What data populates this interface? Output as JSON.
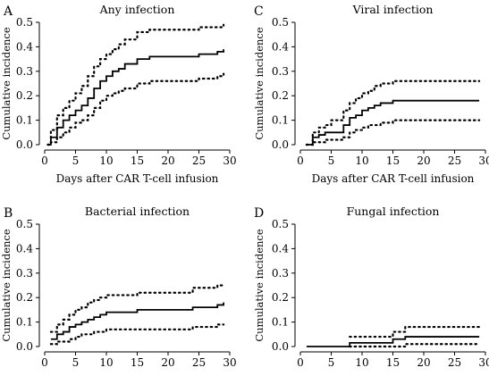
{
  "figure": {
    "y_label": "Cumulative incidence",
    "x_label": "Days after CAR T-cell infusion"
  },
  "chart_data": [
    {
      "type": "line",
      "panel_letter": "A",
      "title": "Any infection",
      "xlabel": "Days after CAR T-cell infusion",
      "ylabel": "Cumulative incidence",
      "xlim": [
        0,
        30
      ],
      "ylim": [
        0,
        0.5
      ],
      "x_ticks": [
        0,
        5,
        10,
        15,
        20,
        25,
        30
      ],
      "y_ticks": [
        0.0,
        0.1,
        0.2,
        0.3,
        0.4,
        0.5
      ],
      "grid": false,
      "series": [
        {
          "role": "estimate",
          "style": "solid",
          "x": [
            0.5,
            1,
            2,
            3,
            4,
            5,
            6,
            7,
            8,
            9,
            10,
            11,
            12,
            13,
            15,
            17,
            19,
            22,
            25,
            28,
            29
          ],
          "y": [
            0.0,
            0.03,
            0.07,
            0.1,
            0.12,
            0.14,
            0.16,
            0.19,
            0.23,
            0.26,
            0.28,
            0.3,
            0.31,
            0.33,
            0.35,
            0.36,
            0.36,
            0.36,
            0.37,
            0.38,
            0.39
          ]
        },
        {
          "role": "upper",
          "style": "dotted",
          "x": [
            0.5,
            1,
            2,
            3,
            4,
            5,
            6,
            7,
            8,
            9,
            10,
            11,
            12,
            13,
            15,
            17,
            19,
            22,
            25,
            28,
            29
          ],
          "y": [
            0.0,
            0.06,
            0.12,
            0.15,
            0.18,
            0.21,
            0.24,
            0.28,
            0.32,
            0.35,
            0.37,
            0.39,
            0.41,
            0.43,
            0.46,
            0.47,
            0.47,
            0.47,
            0.48,
            0.48,
            0.49
          ]
        },
        {
          "role": "lower",
          "style": "dotted",
          "x": [
            0.5,
            1,
            2,
            3,
            4,
            5,
            6,
            7,
            8,
            9,
            10,
            11,
            12,
            13,
            15,
            17,
            19,
            22,
            25,
            28,
            29
          ],
          "y": [
            0.0,
            0.01,
            0.03,
            0.05,
            0.07,
            0.09,
            0.1,
            0.12,
            0.15,
            0.18,
            0.2,
            0.21,
            0.22,
            0.23,
            0.25,
            0.26,
            0.26,
            0.26,
            0.27,
            0.28,
            0.29
          ]
        }
      ]
    },
    {
      "type": "line",
      "panel_letter": "C",
      "title": "Viral infection",
      "xlabel": "Days after CAR T-cell infusion",
      "ylabel": "Cumulative incidence",
      "xlim": [
        0,
        30
      ],
      "ylim": [
        0,
        0.5
      ],
      "x_ticks": [
        0,
        5,
        10,
        15,
        20,
        25,
        30
      ],
      "y_ticks": [
        0.0,
        0.1,
        0.2,
        0.3,
        0.4,
        0.5
      ],
      "grid": false,
      "series": [
        {
          "role": "estimate",
          "style": "solid",
          "x": [
            1,
            2,
            3,
            4,
            5,
            7,
            8,
            9,
            10,
            11,
            12,
            13,
            14,
            15,
            29
          ],
          "y": [
            0.0,
            0.03,
            0.04,
            0.05,
            0.05,
            0.08,
            0.11,
            0.12,
            0.14,
            0.15,
            0.16,
            0.17,
            0.17,
            0.18,
            0.18
          ]
        },
        {
          "role": "upper",
          "style": "dotted",
          "x": [
            1,
            2,
            3,
            4,
            5,
            7,
            8,
            9,
            10,
            11,
            12,
            13,
            14,
            15,
            29
          ],
          "y": [
            0.0,
            0.05,
            0.07,
            0.08,
            0.1,
            0.14,
            0.17,
            0.19,
            0.21,
            0.22,
            0.24,
            0.25,
            0.25,
            0.26,
            0.26
          ]
        },
        {
          "role": "lower",
          "style": "dotted",
          "x": [
            1,
            2,
            3,
            4,
            5,
            7,
            8,
            9,
            10,
            11,
            12,
            13,
            14,
            15,
            29
          ],
          "y": [
            0.0,
            0.01,
            0.01,
            0.02,
            0.02,
            0.03,
            0.05,
            0.06,
            0.07,
            0.08,
            0.08,
            0.09,
            0.09,
            0.1,
            0.1
          ]
        }
      ]
    },
    {
      "type": "line",
      "panel_letter": "B",
      "title": "Bacterial infection",
      "xlabel": "",
      "ylabel": "Cumulative incidence",
      "xlim": [
        0,
        30
      ],
      "ylim": [
        0,
        0.5
      ],
      "x_ticks": [
        0,
        5,
        10,
        15,
        20,
        25,
        30
      ],
      "y_ticks": [
        0.0,
        0.1,
        0.2,
        0.3,
        0.4,
        0.5
      ],
      "grid": false,
      "series": [
        {
          "role": "estimate",
          "style": "solid",
          "x": [
            1,
            2,
            3,
            4,
            5,
            6,
            7,
            8,
            9,
            10,
            15,
            24,
            28,
            29
          ],
          "y": [
            0.03,
            0.05,
            0.06,
            0.08,
            0.09,
            0.1,
            0.11,
            0.12,
            0.13,
            0.14,
            0.15,
            0.16,
            0.17,
            0.18
          ]
        },
        {
          "role": "upper",
          "style": "dotted",
          "x": [
            1,
            2,
            3,
            4,
            5,
            6,
            7,
            8,
            9,
            10,
            15,
            24,
            28,
            29
          ],
          "y": [
            0.06,
            0.09,
            0.11,
            0.13,
            0.15,
            0.16,
            0.18,
            0.19,
            0.2,
            0.21,
            0.22,
            0.24,
            0.25,
            0.25
          ]
        },
        {
          "role": "lower",
          "style": "dotted",
          "x": [
            1,
            2,
            3,
            4,
            5,
            6,
            7,
            8,
            9,
            10,
            15,
            24,
            28,
            29
          ],
          "y": [
            0.01,
            0.02,
            0.02,
            0.03,
            0.04,
            0.05,
            0.05,
            0.06,
            0.06,
            0.07,
            0.07,
            0.08,
            0.09,
            0.09
          ]
        }
      ]
    },
    {
      "type": "line",
      "panel_letter": "D",
      "title": "Fungal infection",
      "xlabel": "",
      "ylabel": "Cumulative incidence",
      "xlim": [
        0,
        30
      ],
      "ylim": [
        0,
        0.5
      ],
      "x_ticks": [
        0,
        5,
        10,
        15,
        20,
        25,
        30
      ],
      "y_ticks": [
        0.0,
        0.1,
        0.2,
        0.3,
        0.4,
        0.5
      ],
      "grid": false,
      "series": [
        {
          "role": "estimate",
          "style": "solid",
          "x": [
            1,
            8,
            15,
            17,
            29
          ],
          "y": [
            0.0,
            0.015,
            0.03,
            0.04,
            0.04
          ]
        },
        {
          "role": "upper",
          "style": "dotted",
          "x": [
            8,
            15,
            17,
            29
          ],
          "y": [
            0.04,
            0.06,
            0.08,
            0.08
          ]
        },
        {
          "role": "lower",
          "style": "dotted",
          "x": [
            8,
            15,
            17,
            29
          ],
          "y": [
            0.0,
            0.0,
            0.01,
            0.01
          ]
        }
      ]
    }
  ]
}
